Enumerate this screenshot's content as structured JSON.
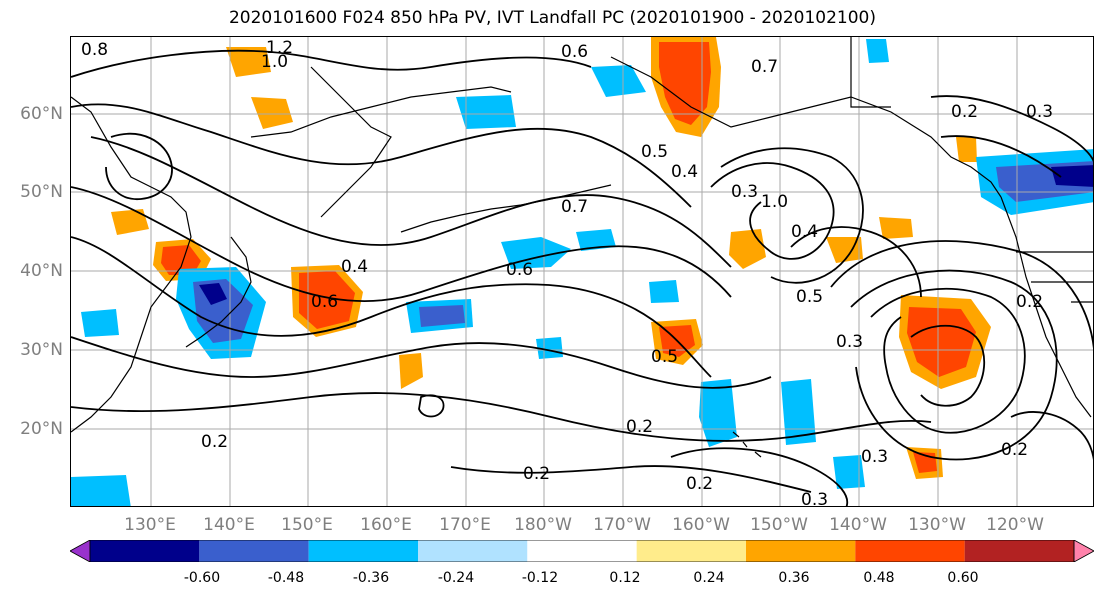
{
  "title": "2020101600 F024 850 hPa PV, IVT Landfall PC (2020101900 - 2020102100)",
  "lat_labels": [
    "60°N",
    "50°N",
    "40°N",
    "30°N",
    "20°N"
  ],
  "lon_labels": [
    "130°E",
    "140°E",
    "150°E",
    "160°E",
    "170°E",
    "180°W",
    "170°W",
    "160°W",
    "150°W",
    "140°W",
    "130°W",
    "120°W"
  ],
  "contour_labels": [
    "1.2",
    "1.0",
    "0.8",
    "0.7",
    "0.6",
    "0.5",
    "0.4",
    "0.3",
    "0.2",
    "0.2",
    "0.2",
    "0.2",
    "0.3",
    "0.5",
    "0.7",
    "0.6",
    "1.0",
    "0.4",
    "0.3",
    "0.2",
    "0.3",
    "0.2",
    "0.2",
    "0.3",
    "0.5",
    "0.4",
    "0.6"
  ],
  "colorbar": {
    "ticks": [
      "-0.60",
      "-0.48",
      "-0.36",
      "-0.24",
      "-0.12",
      "0.12",
      "0.24",
      "0.36",
      "0.48",
      "0.60"
    ],
    "colors": [
      "#9932cc",
      "#00008b",
      "#3a5fcd",
      "#00bfff",
      "#b0e2ff",
      "#ffffff",
      "#ffec8b",
      "#ffa500",
      "#ff4500",
      "#b22222",
      "#ff82ab"
    ]
  }
}
